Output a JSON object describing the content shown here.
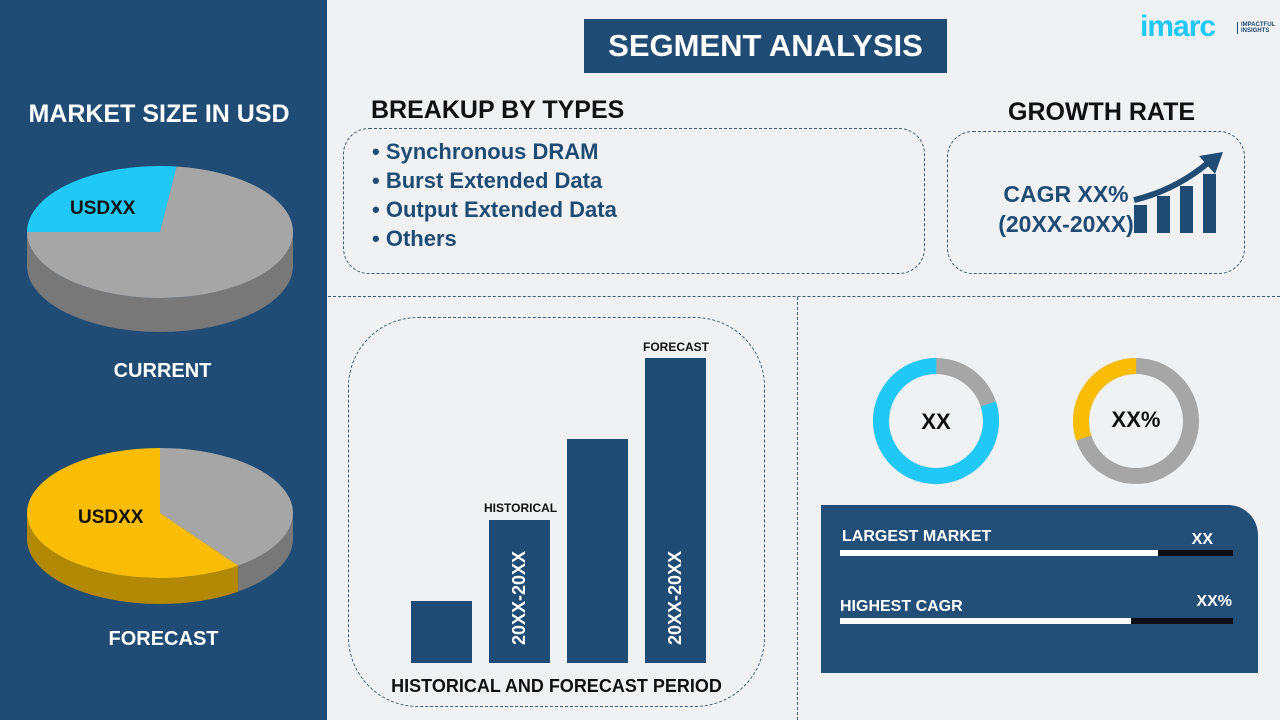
{
  "title": "SEGMENT ANALYSIS",
  "logo": {
    "text": "imarc",
    "tagline": "IMPACTFUL INSIGHTS"
  },
  "left": {
    "heading": "MARKET SIZE IN USD",
    "current": {
      "label": "CURRENT",
      "value": "USDXX",
      "share": 0.27,
      "color": "#1fc8f5"
    },
    "forecast": {
      "label": "FORECAST",
      "value": "USDXX",
      "share": 0.6,
      "color": "#f9bd05"
    }
  },
  "breakup": {
    "heading": "BREAKUP BY TYPES",
    "items": [
      "Synchronous DRAM",
      "Burst Extended Data",
      "Output Extended Data",
      "Others"
    ]
  },
  "growth": {
    "heading": "GROWTH RATE",
    "cagr": "CAGR XX%",
    "period": "(20XX-20XX)"
  },
  "period_chart": {
    "caption": "HISTORICAL AND FORECAST PERIOD",
    "historical_label": "HISTORICAL",
    "forecast_label": "FORECAST",
    "historical_range": "20XX-20XX",
    "forecast_range": "20XX-20XX",
    "relative_heights": [
      1,
      2.3,
      3.6,
      4.9
    ]
  },
  "donuts": [
    {
      "label": "XX",
      "share": 0.8,
      "color": "#1fc8f5"
    },
    {
      "label": "XX%",
      "share": 0.3,
      "color": "#f9bd05"
    }
  ],
  "stats": [
    {
      "label": "LARGEST MARKET",
      "value": "XX",
      "fill": 0.81
    },
    {
      "label": "HIGHEST CAGR",
      "value": "XX%",
      "fill": 0.74
    }
  ],
  "colors": {
    "navy": "#1f4b74",
    "grey": "#a6a6a6",
    "cyan": "#1fc8f5",
    "yellow": "#f9bd05"
  }
}
